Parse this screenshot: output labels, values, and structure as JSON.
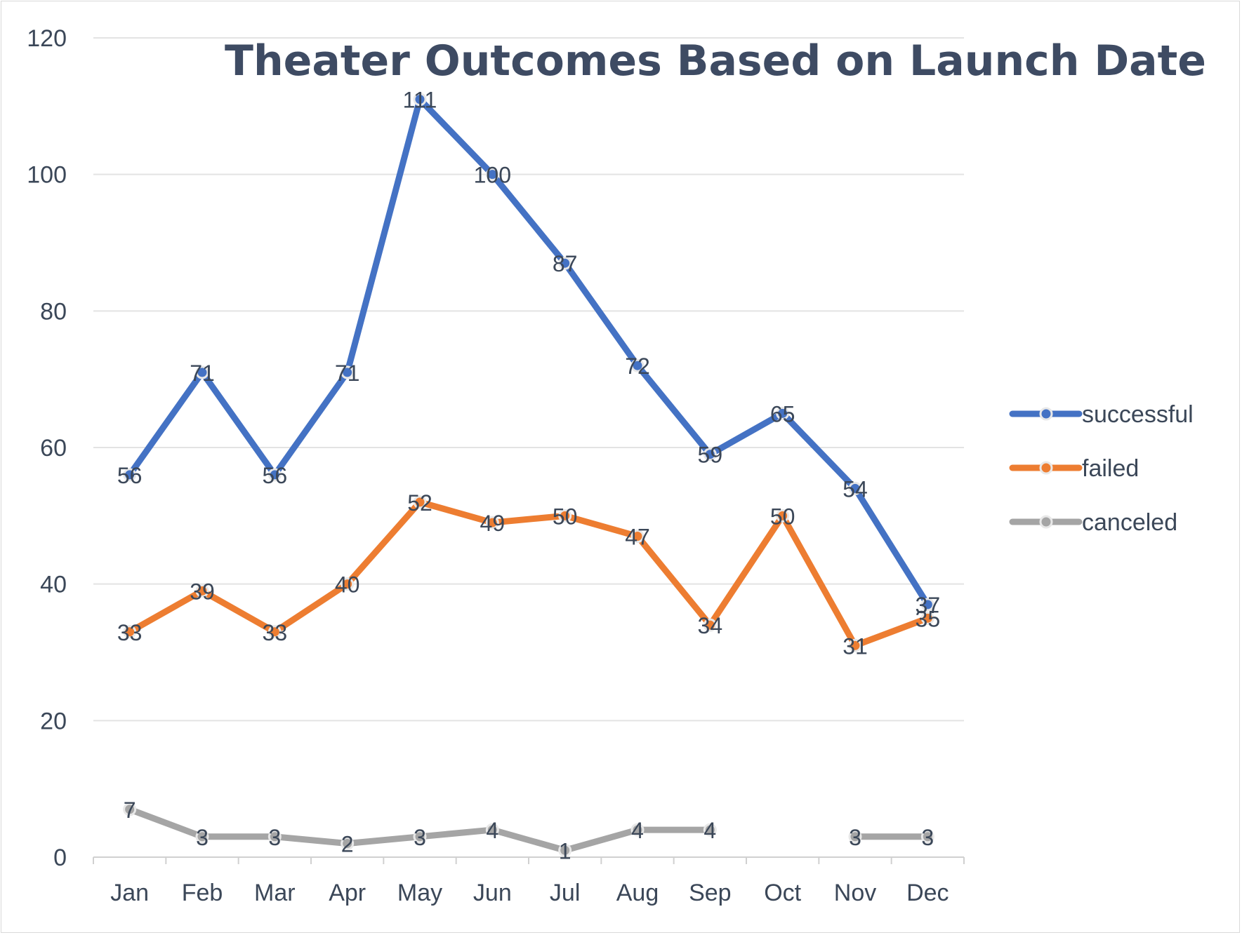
{
  "chart_data": {
    "type": "line",
    "title": "Theater Outcomes Based on  Launch Date",
    "xlabel": "",
    "ylabel": "",
    "ylim": [
      0,
      120
    ],
    "yticks": [
      0,
      20,
      40,
      60,
      80,
      100,
      120
    ],
    "grid": true,
    "legend_position": "right",
    "categories": [
      "Jan",
      "Feb",
      "Mar",
      "Apr",
      "May",
      "Jun",
      "Jul",
      "Aug",
      "Sep",
      "Oct",
      "Nov",
      "Dec"
    ],
    "series": [
      {
        "name": "successful",
        "color": "#4472c4",
        "values": [
          56,
          71,
          56,
          71,
          111,
          100,
          87,
          72,
          59,
          65,
          54,
          37
        ]
      },
      {
        "name": "failed",
        "color": "#ed7d31",
        "values": [
          33,
          39,
          33,
          40,
          52,
          49,
          50,
          47,
          34,
          50,
          31,
          35
        ]
      },
      {
        "name": "canceled",
        "color": "#a5a5a5",
        "values": [
          7,
          3,
          3,
          2,
          3,
          4,
          1,
          4,
          4,
          null,
          3,
          3
        ]
      }
    ]
  }
}
